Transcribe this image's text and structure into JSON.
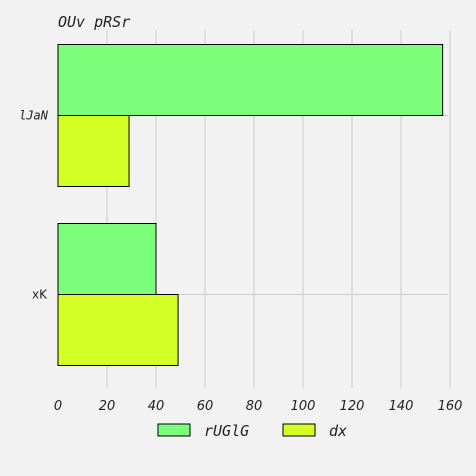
{
  "chart_data": {
    "type": "bar",
    "orientation": "horizontal",
    "title": "OUv pRSr",
    "xlabel": "",
    "ylabel": "",
    "categories": [
      "lJaN",
      "xK"
    ],
    "series": [
      {
        "name": "rUGlG",
        "values": [
          157,
          40
        ],
        "color": "#7bff7b"
      },
      {
        "name": "dx",
        "values": [
          29,
          49
        ],
        "color": "#d4ff24"
      }
    ],
    "xlim": [
      0,
      160
    ],
    "xticks": [
      0,
      20,
      40,
      60,
      80,
      100,
      120,
      140,
      160
    ],
    "grid": true,
    "legend_position": "bottom"
  }
}
